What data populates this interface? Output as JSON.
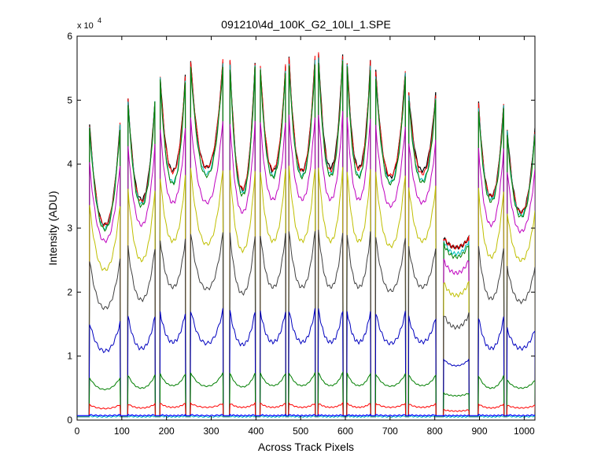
{
  "chart_data": {
    "type": "line",
    "title": "091210\\4d_100K_G2_10LI_1.SPE",
    "xlabel": "Across Track Pixels",
    "ylabel": "Intensity (ADU)",
    "y_exponent_label": "x 10",
    "y_exponent_power": "4",
    "xlim": [
      0,
      1024
    ],
    "ylim": [
      0,
      6
    ],
    "y_scale_factor": 10000,
    "xticks": [
      0,
      100,
      200,
      300,
      400,
      500,
      600,
      700,
      800,
      900,
      1000
    ],
    "yticks": [
      0,
      1,
      2,
      3,
      4,
      5,
      6
    ],
    "grid": false,
    "legend": "none",
    "x_sampling": {
      "pixels": 1024,
      "note": "each series is a segmented profile; segment boundaries in x (pixels) with per-segment edge/middle values"
    },
    "segments": [
      {
        "x0": 28,
        "x1": 96
      },
      {
        "x0": 114,
        "x1": 174
      },
      {
        "x0": 186,
        "x1": 242
      },
      {
        "x0": 254,
        "x1": 326
      },
      {
        "x0": 342,
        "x1": 398
      },
      {
        "x0": 410,
        "x1": 466
      },
      {
        "x0": 474,
        "x1": 532
      },
      {
        "x0": 540,
        "x1": 594
      },
      {
        "x0": 604,
        "x1": 656
      },
      {
        "x0": 668,
        "x1": 734
      },
      {
        "x0": 742,
        "x1": 802
      },
      {
        "x0": 820,
        "x1": 876
      },
      {
        "x0": 898,
        "x1": 954
      },
      {
        "x0": 962,
        "x1": 1024
      }
    ],
    "series": [
      {
        "color": "#000000",
        "lineWidth": 1.2,
        "baseline": 0.05,
        "edge": [
          4.62,
          5.0,
          5.37,
          5.6,
          5.6,
          5.5,
          5.66,
          5.72,
          5.6,
          5.45,
          5.12,
          2.85,
          4.95,
          4.55
        ],
        "mid": [
          3.05,
          3.45,
          3.9,
          3.95,
          3.6,
          3.9,
          3.9,
          3.95,
          3.95,
          3.8,
          3.9,
          2.7,
          3.5,
          3.25
        ]
      },
      {
        "color": "#ff0000",
        "lineWidth": 1.0,
        "baseline": 0.05,
        "edge": [
          4.62,
          5.0,
          5.37,
          5.62,
          5.6,
          5.55,
          5.68,
          5.72,
          5.6,
          5.45,
          5.1,
          2.85,
          4.95,
          4.52
        ],
        "mid": [
          3.05,
          3.42,
          3.88,
          3.95,
          3.62,
          3.92,
          3.9,
          3.9,
          3.92,
          3.82,
          3.85,
          2.7,
          3.5,
          3.25
        ]
      },
      {
        "color": "#00bfbf",
        "lineWidth": 1.0,
        "baseline": 0.05,
        "edge": [
          4.6,
          4.98,
          5.33,
          5.55,
          5.55,
          5.48,
          5.6,
          5.65,
          5.55,
          5.4,
          5.05,
          2.8,
          4.9,
          4.5
        ],
        "mid": [
          3.0,
          3.38,
          3.72,
          3.85,
          3.55,
          3.82,
          3.82,
          3.85,
          3.82,
          3.72,
          3.75,
          2.6,
          3.45,
          3.2
        ]
      },
      {
        "color": "#008000",
        "lineWidth": 1.0,
        "baseline": 0.05,
        "edge": [
          4.55,
          4.95,
          5.3,
          5.52,
          5.5,
          5.45,
          5.55,
          5.6,
          5.5,
          5.35,
          5.0,
          2.75,
          4.85,
          4.45
        ],
        "mid": [
          2.98,
          3.35,
          3.7,
          3.82,
          3.52,
          3.8,
          3.8,
          3.82,
          3.8,
          3.7,
          3.72,
          2.55,
          3.42,
          3.18
        ]
      },
      {
        "color": "#bf00bf",
        "lineWidth": 1.0,
        "baseline": 0.05,
        "edge": [
          4.0,
          4.3,
          4.55,
          4.7,
          4.65,
          4.65,
          4.75,
          4.8,
          4.72,
          4.6,
          4.35,
          2.5,
          4.25,
          3.9
        ],
        "mid": [
          2.8,
          3.05,
          3.4,
          3.4,
          3.25,
          3.45,
          3.45,
          3.45,
          3.45,
          3.35,
          3.4,
          2.3,
          3.05,
          2.95
        ]
      },
      {
        "color": "#bfbf00",
        "lineWidth": 1.0,
        "baseline": 0.05,
        "edge": [
          3.35,
          3.6,
          3.8,
          3.92,
          3.9,
          3.9,
          3.95,
          3.95,
          3.9,
          3.85,
          3.65,
          2.15,
          3.6,
          3.25
        ],
        "mid": [
          2.35,
          2.5,
          2.8,
          2.75,
          2.65,
          2.8,
          2.8,
          2.8,
          2.8,
          2.72,
          2.8,
          1.95,
          2.55,
          2.5
        ]
      },
      {
        "color": "#404040",
        "lineWidth": 1.0,
        "baseline": 0.05,
        "edge": [
          2.5,
          2.7,
          2.82,
          2.92,
          2.9,
          2.9,
          2.95,
          2.95,
          2.92,
          2.85,
          2.7,
          1.65,
          2.7,
          2.4
        ],
        "mid": [
          1.75,
          1.88,
          2.08,
          2.05,
          1.98,
          2.08,
          2.08,
          2.08,
          2.08,
          2.02,
          2.08,
          1.45,
          1.9,
          1.85
        ]
      },
      {
        "color": "#0000bf",
        "lineWidth": 1.0,
        "baseline": 0.05,
        "edge": [
          1.52,
          1.62,
          1.68,
          1.72,
          1.7,
          1.7,
          1.72,
          1.72,
          1.7,
          1.68,
          1.6,
          0.95,
          1.6,
          1.42
        ],
        "mid": [
          1.08,
          1.12,
          1.22,
          1.2,
          1.18,
          1.22,
          1.22,
          1.22,
          1.22,
          1.2,
          1.22,
          0.85,
          1.12,
          1.12
        ]
      },
      {
        "color": "#007f00",
        "lineWidth": 1.0,
        "baseline": 0.05,
        "edge": [
          0.66,
          0.7,
          0.72,
          0.74,
          0.73,
          0.73,
          0.74,
          0.74,
          0.73,
          0.72,
          0.7,
          0.42,
          0.69,
          0.62
        ],
        "mid": [
          0.48,
          0.5,
          0.54,
          0.53,
          0.52,
          0.54,
          0.54,
          0.54,
          0.54,
          0.53,
          0.54,
          0.38,
          0.5,
          0.5
        ]
      },
      {
        "color": "#ff0000",
        "lineWidth": 1.0,
        "baseline": 0.05,
        "edge": [
          0.24,
          0.25,
          0.26,
          0.26,
          0.26,
          0.26,
          0.26,
          0.26,
          0.26,
          0.26,
          0.25,
          0.16,
          0.25,
          0.23
        ],
        "mid": [
          0.18,
          0.19,
          0.2,
          0.2,
          0.2,
          0.2,
          0.2,
          0.2,
          0.2,
          0.2,
          0.2,
          0.14,
          0.19,
          0.19
        ]
      },
      {
        "color": "#00bfbf",
        "lineWidth": 1.0,
        "baseline": 0.05,
        "edge": [
          0.06,
          0.06,
          0.06,
          0.06,
          0.06,
          0.06,
          0.06,
          0.06,
          0.06,
          0.06,
          0.06,
          0.05,
          0.06,
          0.06
        ],
        "mid": [
          0.05,
          0.05,
          0.05,
          0.05,
          0.05,
          0.05,
          0.05,
          0.05,
          0.05,
          0.05,
          0.05,
          0.05,
          0.05,
          0.05
        ]
      },
      {
        "color": "#0000ff",
        "lineWidth": 1.2,
        "baseline": 0.07,
        "edge": [
          0.08,
          0.08,
          0.08,
          0.08,
          0.08,
          0.08,
          0.08,
          0.08,
          0.08,
          0.08,
          0.08,
          0.07,
          0.08,
          0.08
        ],
        "mid": [
          0.07,
          0.07,
          0.07,
          0.07,
          0.07,
          0.07,
          0.07,
          0.07,
          0.07,
          0.07,
          0.07,
          0.07,
          0.07,
          0.07
        ]
      }
    ]
  }
}
